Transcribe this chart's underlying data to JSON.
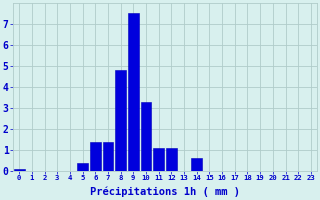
{
  "categories": [
    0,
    1,
    2,
    3,
    4,
    5,
    6,
    7,
    8,
    9,
    10,
    11,
    12,
    13,
    14,
    15,
    16,
    17,
    18,
    19,
    20,
    21,
    22,
    23
  ],
  "values": [
    0.1,
    0,
    0,
    0,
    0,
    0.4,
    1.4,
    1.4,
    4.8,
    7.5,
    3.3,
    1.1,
    1.1,
    0,
    0.6,
    0,
    0,
    0,
    0,
    0,
    0,
    0,
    0,
    0
  ],
  "bar_color": "#0000dd",
  "bar_edge_color": "#0000bb",
  "background_color": "#d8f0ee",
  "grid_color": "#b0ccca",
  "text_color": "#0000cc",
  "xlabel": "Précipitations 1h ( mm )",
  "ylim": [
    0,
    8
  ],
  "yticks": [
    0,
    1,
    2,
    3,
    4,
    5,
    6,
    7
  ],
  "xlim": [
    -0.5,
    23.5
  ],
  "xlabel_fontsize": 7.5,
  "ytick_fontsize": 7,
  "xtick_fontsize": 5.2,
  "figsize": [
    3.2,
    2.0
  ],
  "dpi": 100
}
